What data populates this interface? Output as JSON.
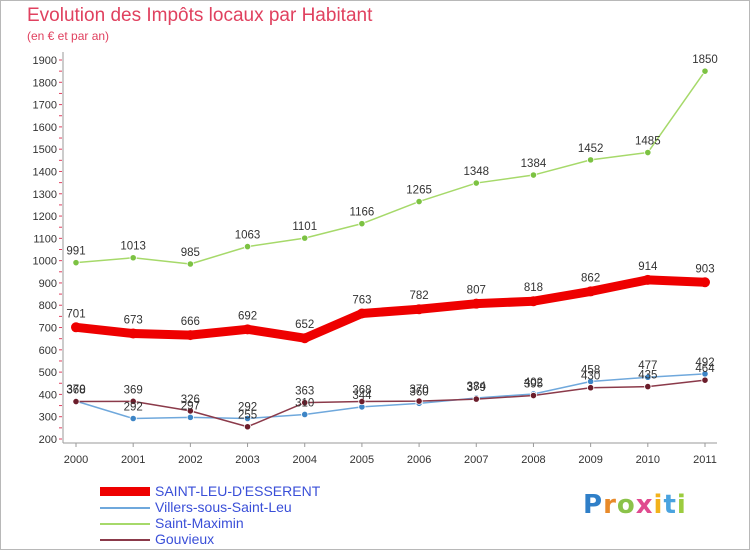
{
  "header": {
    "title": "Evolution des Impôts locaux par Habitant",
    "subtitle": "(en € et par an)"
  },
  "logo": {
    "text": "Proxiti"
  },
  "chart_data": {
    "type": "line",
    "x": [
      "2000",
      "2001",
      "2002",
      "2003",
      "2004",
      "2005",
      "2006",
      "2007",
      "2008",
      "2009",
      "2010",
      "2011"
    ],
    "ylim": [
      200,
      1900
    ],
    "yticks": [
      200,
      300,
      400,
      500,
      600,
      700,
      800,
      900,
      1000,
      1100,
      1200,
      1300,
      1400,
      1500,
      1600,
      1700,
      1800,
      1900
    ],
    "grid": false,
    "legend_position": "bottom-left",
    "series": [
      {
        "name": "SAINT-LEU-D'ESSERENT",
        "color": "#ee0000",
        "marker_color": "#ee0000",
        "stroke": "bold",
        "values": [
          701,
          673,
          666,
          692,
          652,
          763,
          782,
          807,
          818,
          862,
          914,
          903
        ],
        "labels": [
          "701",
          "673",
          "666",
          "692",
          "652",
          "763",
          "782",
          "807",
          "818",
          "862",
          "914",
          "903"
        ]
      },
      {
        "name": "Villers-sous-Saint-Leu",
        "color": "#6fa8dc",
        "marker_color": "#3d85c6",
        "stroke": "thin",
        "values": [
          370,
          292,
          297,
          292,
          310,
          344,
          360,
          384,
          402,
          458,
          477,
          492
        ],
        "labels": [
          "370",
          "292",
          "297",
          "292",
          "310",
          "344",
          "360",
          "384",
          "402",
          "458",
          "477",
          "492"
        ]
      },
      {
        "name": "Saint-Maximin",
        "color": "#a6d96a",
        "marker_color": "#7cc242",
        "stroke": "thin",
        "values": [
          991,
          1013,
          985,
          1063,
          1101,
          1166,
          1265,
          1348,
          1384,
          1452,
          1485,
          1850
        ],
        "labels": [
          "991",
          "1013",
          "985",
          "1063",
          "1101",
          "1166",
          "1265",
          "1348",
          "1384",
          "1452",
          "1485",
          "1850"
        ]
      },
      {
        "name": "Gouvieux",
        "color": "#8b3a4a",
        "marker_color": "#6b1d2b",
        "stroke": "thin",
        "values": [
          368,
          369,
          326,
          255,
          363,
          368,
          370,
          379,
          395,
          430,
          435,
          464
        ],
        "labels": [
          "368",
          "369",
          "326",
          "255",
          "363",
          "368",
          "370",
          "379",
          "395",
          "430",
          "435",
          "464"
        ]
      }
    ]
  }
}
